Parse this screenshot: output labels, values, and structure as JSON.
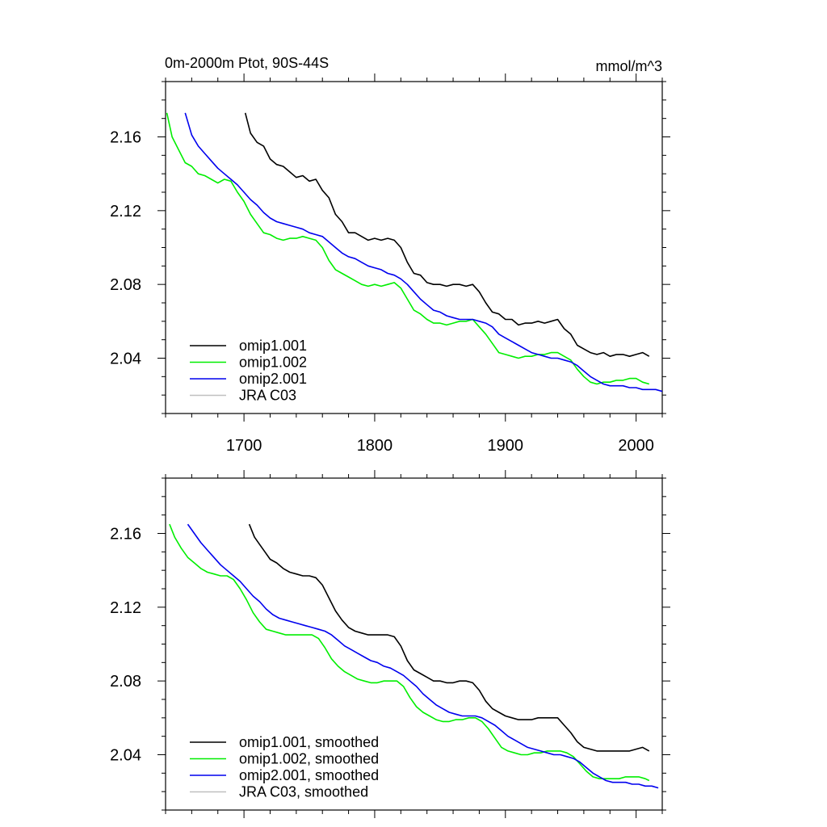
{
  "title_left": "0m-2000m Ptot, 90S-44S",
  "title_right": "mmol/m^3",
  "chart_data": [
    {
      "type": "line",
      "xlim": [
        1640,
        2020
      ],
      "ylim": [
        2.01,
        2.19
      ],
      "x_ticks": [
        1700,
        1800,
        1900,
        2000
      ],
      "x_tick_labels": [
        "1700",
        "1800",
        "1900",
        "2000"
      ],
      "y_ticks": [
        2.04,
        2.08,
        2.12,
        2.16
      ],
      "y_tick_labels": [
        "2.04",
        "2.08",
        "2.12",
        "2.16"
      ],
      "grid": false,
      "legend_position": "bottom-left",
      "series": [
        {
          "name": "omip1.001",
          "color": "#000000",
          "x": [
            1701,
            1705,
            1710,
            1715,
            1720,
            1725,
            1730,
            1735,
            1740,
            1745,
            1750,
            1755,
            1760,
            1765,
            1770,
            1775,
            1780,
            1785,
            1790,
            1795,
            1800,
            1805,
            1810,
            1815,
            1820,
            1825,
            1830,
            1835,
            1840,
            1845,
            1850,
            1855,
            1860,
            1865,
            1870,
            1875,
            1880,
            1885,
            1890,
            1895,
            1900,
            1905,
            1910,
            1915,
            1920,
            1925,
            1930,
            1935,
            1940,
            1945,
            1950,
            1955,
            1960,
            1965,
            1970,
            1975,
            1980,
            1985,
            1990,
            1995,
            2000,
            2005,
            2010
          ],
          "y": [
            2.173,
            2.162,
            2.157,
            2.155,
            2.148,
            2.145,
            2.144,
            2.141,
            2.138,
            2.139,
            2.136,
            2.137,
            2.131,
            2.127,
            2.118,
            2.114,
            2.108,
            2.108,
            2.106,
            2.104,
            2.105,
            2.104,
            2.105,
            2.104,
            2.1,
            2.092,
            2.086,
            2.085,
            2.081,
            2.08,
            2.08,
            2.079,
            2.08,
            2.08,
            2.079,
            2.08,
            2.076,
            2.07,
            2.065,
            2.064,
            2.061,
            2.061,
            2.058,
            2.059,
            2.059,
            2.06,
            2.059,
            2.06,
            2.061,
            2.056,
            2.053,
            2.047,
            2.045,
            2.043,
            2.042,
            2.043,
            2.041,
            2.042,
            2.042,
            2.041,
            2.042,
            2.043,
            2.041
          ]
        },
        {
          "name": "omip1.002",
          "color": "#00ee00",
          "x": [
            1641,
            1645,
            1650,
            1655,
            1660,
            1665,
            1670,
            1675,
            1680,
            1685,
            1690,
            1695,
            1700,
            1705,
            1710,
            1715,
            1720,
            1725,
            1730,
            1735,
            1740,
            1745,
            1750,
            1755,
            1760,
            1765,
            1770,
            1775,
            1780,
            1785,
            1790,
            1795,
            1800,
            1805,
            1810,
            1815,
            1820,
            1825,
            1830,
            1835,
            1840,
            1845,
            1850,
            1855,
            1860,
            1865,
            1870,
            1875,
            1880,
            1885,
            1890,
            1895,
            1900,
            1905,
            1910,
            1915,
            1920,
            1925,
            1930,
            1935,
            1940,
            1945,
            1950,
            1955,
            1960,
            1965,
            1970,
            1975,
            1980,
            1985,
            1990,
            1995,
            2000,
            2005,
            2010
          ],
          "y": [
            2.173,
            2.16,
            2.153,
            2.146,
            2.144,
            2.14,
            2.139,
            2.137,
            2.135,
            2.137,
            2.136,
            2.13,
            2.125,
            2.118,
            2.113,
            2.108,
            2.107,
            2.105,
            2.104,
            2.105,
            2.105,
            2.106,
            2.105,
            2.104,
            2.1,
            2.093,
            2.088,
            2.086,
            2.084,
            2.082,
            2.08,
            2.079,
            2.08,
            2.079,
            2.08,
            2.081,
            2.078,
            2.072,
            2.066,
            2.064,
            2.061,
            2.059,
            2.059,
            2.058,
            2.059,
            2.06,
            2.06,
            2.061,
            2.057,
            2.053,
            2.048,
            2.043,
            2.042,
            2.041,
            2.04,
            2.041,
            2.041,
            2.042,
            2.042,
            2.043,
            2.043,
            2.041,
            2.039,
            2.034,
            2.03,
            2.027,
            2.026,
            2.027,
            2.027,
            2.028,
            2.028,
            2.029,
            2.029,
            2.027,
            2.026
          ]
        },
        {
          "name": "omip2.001",
          "color": "#0000ee",
          "x": [
            1655,
            1660,
            1665,
            1670,
            1675,
            1680,
            1685,
            1690,
            1695,
            1700,
            1705,
            1710,
            1715,
            1720,
            1725,
            1730,
            1735,
            1740,
            1745,
            1750,
            1755,
            1760,
            1765,
            1770,
            1775,
            1780,
            1785,
            1790,
            1795,
            1800,
            1805,
            1810,
            1815,
            1820,
            1825,
            1830,
            1835,
            1840,
            1845,
            1850,
            1855,
            1860,
            1865,
            1870,
            1875,
            1880,
            1885,
            1890,
            1895,
            1900,
            1905,
            1910,
            1915,
            1920,
            1925,
            1930,
            1935,
            1940,
            1945,
            1950,
            1955,
            1960,
            1965,
            1970,
            1975,
            1980,
            1985,
            1990,
            1995,
            2000,
            2005,
            2010,
            2015,
            2020
          ],
          "y": [
            2.173,
            2.161,
            2.155,
            2.151,
            2.147,
            2.143,
            2.14,
            2.137,
            2.134,
            2.13,
            2.126,
            2.123,
            2.119,
            2.116,
            2.114,
            2.113,
            2.112,
            2.111,
            2.11,
            2.108,
            2.107,
            2.106,
            2.103,
            2.1,
            2.097,
            2.095,
            2.094,
            2.092,
            2.09,
            2.089,
            2.088,
            2.086,
            2.085,
            2.083,
            2.08,
            2.076,
            2.072,
            2.069,
            2.066,
            2.065,
            2.063,
            2.062,
            2.061,
            2.061,
            2.061,
            2.06,
            2.059,
            2.057,
            2.053,
            2.051,
            2.049,
            2.047,
            2.045,
            2.043,
            2.042,
            2.041,
            2.04,
            2.04,
            2.039,
            2.038,
            2.036,
            2.033,
            2.03,
            2.028,
            2.026,
            2.025,
            2.025,
            2.025,
            2.024,
            2.024,
            2.023,
            2.023,
            2.023,
            2.022
          ]
        },
        {
          "name": "JRA C03",
          "color": "#c0c0c0",
          "x": [],
          "y": []
        }
      ]
    },
    {
      "type": "line",
      "xlim": [
        1640,
        2020
      ],
      "ylim": [
        2.01,
        2.19
      ],
      "x_ticks": [
        1700,
        1800,
        1900,
        2000
      ],
      "y_ticks": [
        2.04,
        2.08,
        2.12,
        2.16
      ],
      "y_tick_labels": [
        "2.04",
        "2.08",
        "2.12",
        "2.16"
      ],
      "grid": false,
      "legend_position": "bottom-left",
      "series": [
        {
          "name": "omip1.001, smoothed",
          "color": "#000000",
          "x": [
            1704,
            1708,
            1712,
            1716,
            1720,
            1725,
            1730,
            1735,
            1740,
            1745,
            1750,
            1755,
            1760,
            1765,
            1770,
            1775,
            1780,
            1785,
            1790,
            1795,
            1800,
            1805,
            1810,
            1815,
            1820,
            1825,
            1830,
            1835,
            1840,
            1845,
            1850,
            1855,
            1860,
            1865,
            1870,
            1875,
            1880,
            1885,
            1890,
            1895,
            1900,
            1905,
            1910,
            1915,
            1920,
            1925,
            1930,
            1935,
            1940,
            1945,
            1950,
            1955,
            1960,
            1965,
            1970,
            1975,
            1980,
            1985,
            1990,
            1995,
            2000,
            2005,
            2010
          ],
          "y": [
            2.165,
            2.158,
            2.154,
            2.15,
            2.146,
            2.144,
            2.141,
            2.139,
            2.138,
            2.137,
            2.137,
            2.136,
            2.132,
            2.125,
            2.118,
            2.113,
            2.109,
            2.107,
            2.106,
            2.105,
            2.105,
            2.105,
            2.105,
            2.104,
            2.099,
            2.091,
            2.086,
            2.084,
            2.082,
            2.08,
            2.08,
            2.079,
            2.079,
            2.08,
            2.08,
            2.079,
            2.075,
            2.069,
            2.065,
            2.063,
            2.061,
            2.06,
            2.059,
            2.059,
            2.059,
            2.06,
            2.06,
            2.06,
            2.06,
            2.056,
            2.052,
            2.047,
            2.044,
            2.043,
            2.042,
            2.042,
            2.042,
            2.042,
            2.042,
            2.042,
            2.043,
            2.044,
            2.042
          ]
        },
        {
          "name": "omip1.002, smoothed",
          "color": "#00ee00",
          "x": [
            1643,
            1647,
            1652,
            1657,
            1662,
            1667,
            1672,
            1677,
            1682,
            1687,
            1692,
            1697,
            1702,
            1707,
            1712,
            1717,
            1722,
            1727,
            1732,
            1737,
            1742,
            1747,
            1752,
            1757,
            1762,
            1767,
            1772,
            1777,
            1782,
            1787,
            1792,
            1797,
            1802,
            1807,
            1812,
            1817,
            1822,
            1827,
            1832,
            1837,
            1842,
            1847,
            1852,
            1857,
            1862,
            1867,
            1872,
            1877,
            1882,
            1887,
            1892,
            1897,
            1902,
            1907,
            1912,
            1917,
            1922,
            1927,
            1932,
            1937,
            1942,
            1947,
            1952,
            1957,
            1962,
            1967,
            1972,
            1977,
            1982,
            1987,
            1992,
            1997,
            2002,
            2007,
            2010
          ],
          "y": [
            2.165,
            2.158,
            2.152,
            2.147,
            2.144,
            2.141,
            2.139,
            2.138,
            2.137,
            2.137,
            2.135,
            2.13,
            2.124,
            2.117,
            2.112,
            2.108,
            2.107,
            2.106,
            2.105,
            2.105,
            2.105,
            2.105,
            2.105,
            2.103,
            2.098,
            2.092,
            2.088,
            2.085,
            2.083,
            2.081,
            2.08,
            2.079,
            2.079,
            2.08,
            2.08,
            2.08,
            2.077,
            2.071,
            2.066,
            2.063,
            2.061,
            2.059,
            2.058,
            2.058,
            2.059,
            2.059,
            2.06,
            2.06,
            2.058,
            2.054,
            2.049,
            2.044,
            2.042,
            2.041,
            2.04,
            2.04,
            2.041,
            2.041,
            2.042,
            2.042,
            2.042,
            2.041,
            2.039,
            2.035,
            2.031,
            2.028,
            2.027,
            2.027,
            2.027,
            2.027,
            2.028,
            2.028,
            2.028,
            2.027,
            2.026
          ]
        },
        {
          "name": "omip2.001, smoothed",
          "color": "#0000ee",
          "x": [
            1657,
            1662,
            1667,
            1672,
            1677,
            1682,
            1687,
            1692,
            1697,
            1702,
            1707,
            1712,
            1717,
            1722,
            1727,
            1732,
            1737,
            1742,
            1747,
            1752,
            1757,
            1762,
            1767,
            1772,
            1777,
            1782,
            1787,
            1792,
            1797,
            1802,
            1807,
            1812,
            1817,
            1822,
            1827,
            1832,
            1837,
            1842,
            1847,
            1852,
            1857,
            1862,
            1867,
            1872,
            1877,
            1882,
            1887,
            1892,
            1897,
            1902,
            1907,
            1912,
            1917,
            1922,
            1927,
            1932,
            1937,
            1942,
            1947,
            1952,
            1957,
            1962,
            1967,
            1972,
            1977,
            1982,
            1987,
            1992,
            1997,
            2002,
            2007,
            2012,
            2017
          ],
          "y": [
            2.165,
            2.16,
            2.155,
            2.151,
            2.147,
            2.143,
            2.14,
            2.137,
            2.134,
            2.13,
            2.126,
            2.123,
            2.119,
            2.116,
            2.114,
            2.113,
            2.112,
            2.111,
            2.11,
            2.109,
            2.108,
            2.107,
            2.105,
            2.102,
            2.099,
            2.097,
            2.095,
            2.093,
            2.091,
            2.09,
            2.088,
            2.087,
            2.085,
            2.083,
            2.08,
            2.077,
            2.073,
            2.07,
            2.067,
            2.065,
            2.063,
            2.062,
            2.061,
            2.061,
            2.061,
            2.06,
            2.058,
            2.056,
            2.053,
            2.05,
            2.048,
            2.046,
            2.044,
            2.043,
            2.042,
            2.041,
            2.04,
            2.04,
            2.039,
            2.038,
            2.036,
            2.033,
            2.03,
            2.028,
            2.026,
            2.025,
            2.025,
            2.025,
            2.024,
            2.024,
            2.023,
            2.023,
            2.022
          ]
        },
        {
          "name": "JRA C03, smoothed",
          "color": "#c0c0c0",
          "x": [],
          "y": []
        }
      ]
    }
  ]
}
